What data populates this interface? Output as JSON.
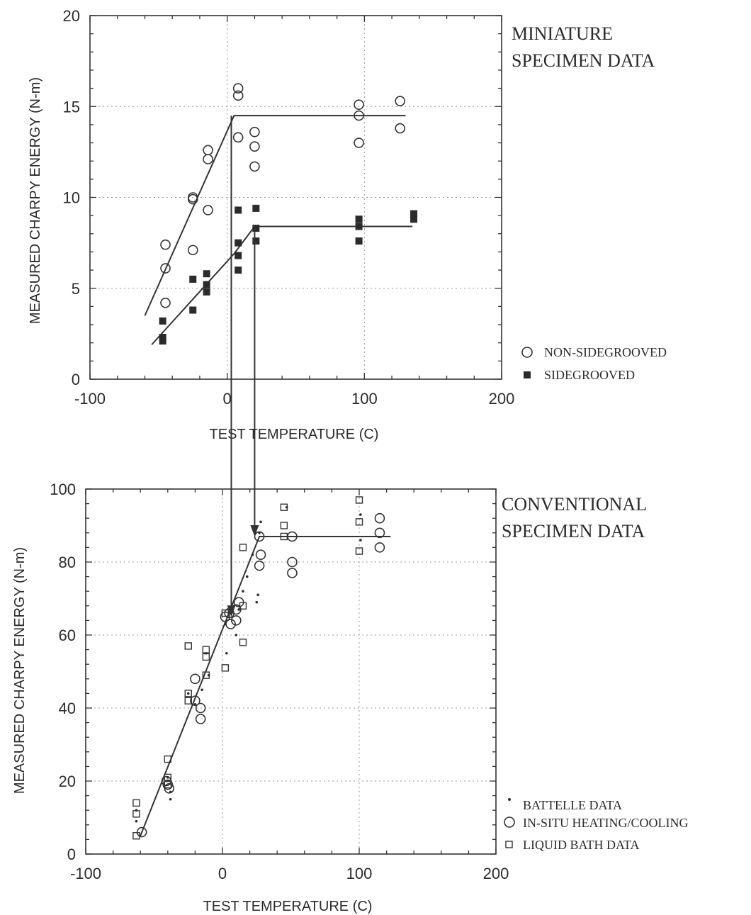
{
  "chart_data": [
    {
      "type": "scatter",
      "title": "MINIATURE SPECIMEN DATA",
      "title_lines": [
        "MINIATURE",
        "SPECIMEN DATA"
      ],
      "xlabel": "TEST TEMPERATURE (C)",
      "ylabel": "MEASURED CHARPY ENERGY (N-m)",
      "xlim": [
        -100,
        200
      ],
      "ylim": [
        0,
        20
      ],
      "xticks": [
        -100,
        0,
        100,
        200
      ],
      "yticks": [
        0,
        5,
        10,
        15,
        20
      ],
      "xtick_labels": [
        "-100",
        "0",
        "100",
        "200"
      ],
      "ytick_labels": [
        "0",
        "5",
        "10",
        "15",
        "20"
      ],
      "grid": true,
      "legend_placement": "right",
      "series": [
        {
          "name": "NON-SIDEGROOVED",
          "marker": "open-circle",
          "points": [
            [
              -45,
              7.4
            ],
            [
              -45,
              6.1
            ],
            [
              -45,
              4.2
            ],
            [
              -25,
              10.0
            ],
            [
              -25,
              9.9
            ],
            [
              -25,
              7.1
            ],
            [
              -14,
              12.6
            ],
            [
              -14,
              12.1
            ],
            [
              -14,
              9.3
            ],
            [
              8,
              16.0
            ],
            [
              8,
              15.6
            ],
            [
              8,
              13.3
            ],
            [
              20,
              13.6
            ],
            [
              20,
              12.8
            ],
            [
              20,
              11.7
            ],
            [
              96,
              15.1
            ],
            [
              96,
              14.5
            ],
            [
              96,
              13.0
            ],
            [
              126,
              15.3
            ],
            [
              126,
              13.8
            ]
          ]
        },
        {
          "name": "SIDEGROOVED",
          "marker": "filled-square",
          "points": [
            [
              -47,
              3.2
            ],
            [
              -47,
              2.3
            ],
            [
              -47,
              2.1
            ],
            [
              -25,
              5.5
            ],
            [
              -25,
              3.8
            ],
            [
              -15,
              5.8
            ],
            [
              -15,
              5.2
            ],
            [
              -15,
              4.8
            ],
            [
              8,
              9.3
            ],
            [
              8,
              7.5
            ],
            [
              8,
              6.8
            ],
            [
              8,
              6.0
            ],
            [
              21,
              9.4
            ],
            [
              21,
              8.3
            ],
            [
              21,
              7.6
            ],
            [
              96,
              8.8
            ],
            [
              96,
              8.4
            ],
            [
              96,
              7.6
            ],
            [
              136,
              9.1
            ],
            [
              136,
              8.8
            ]
          ]
        }
      ],
      "fit_lines": [
        {
          "series": "NON-SIDEGROOVED",
          "points": [
            [
              -60,
              3.5
            ],
            [
              5,
              14.5
            ],
            [
              130,
              14.5
            ]
          ]
        },
        {
          "series": "SIDEGROOVED",
          "points": [
            [
              -55,
              1.9
            ],
            [
              5,
              6.9
            ],
            [
              20,
              8.4
            ],
            [
              135,
              8.4
            ]
          ]
        }
      ]
    },
    {
      "type": "scatter",
      "title": "CONVENTIONAL SPECIMEN DATA",
      "title_lines": [
        "CONVENTIONAL",
        "SPECIMEN DATA"
      ],
      "xlabel": "TEST TEMPERATURE (C)",
      "ylabel": "MEASURED CHARPY ENERGY (N-m)",
      "xlim": [
        -100,
        200
      ],
      "ylim": [
        0,
        100
      ],
      "xticks": [
        -100,
        0,
        100,
        200
      ],
      "yticks": [
        0,
        20,
        40,
        60,
        80,
        100
      ],
      "xtick_labels": [
        "-100",
        "0",
        "100",
        "200"
      ],
      "ytick_labels": [
        "0",
        "20",
        "40",
        "60",
        "80",
        "100"
      ],
      "grid": true,
      "legend_placement": "bottom-right",
      "series": [
        {
          "name": "BATTELLE DATA",
          "marker": "dot",
          "points": [
            [
              -63,
              12
            ],
            [
              -63,
              9
            ],
            [
              -38,
              17
            ],
            [
              -38,
              15
            ],
            [
              -40,
              21
            ],
            [
              -25,
              44
            ],
            [
              -20,
              41
            ],
            [
              -15,
              45
            ],
            [
              -12,
              55
            ],
            [
              -10,
              49
            ],
            [
              2,
              63
            ],
            [
              3,
              55
            ],
            [
              6,
              66
            ],
            [
              10,
              60
            ],
            [
              12,
              67
            ],
            [
              15,
              72
            ],
            [
              18,
              76
            ],
            [
              22,
              82
            ],
            [
              25,
              69
            ],
            [
              26,
              71
            ],
            [
              27,
              88
            ],
            [
              28,
              91
            ],
            [
              47,
              95
            ],
            [
              101,
              93
            ],
            [
              101,
              86
            ]
          ]
        },
        {
          "name": "IN-SITU HEATING/COOLING",
          "marker": "open-circle",
          "points": [
            [
              -59,
              6
            ],
            [
              -41,
              20
            ],
            [
              -40,
              19
            ],
            [
              -39,
              18
            ],
            [
              -20,
              48
            ],
            [
              -20,
              42
            ],
            [
              -16,
              40
            ],
            [
              -16,
              37
            ],
            [
              2,
              65
            ],
            [
              5,
              66
            ],
            [
              6,
              63
            ],
            [
              10,
              64
            ],
            [
              10,
              67
            ],
            [
              12,
              69
            ],
            [
              27,
              87
            ],
            [
              28,
              82
            ],
            [
              27,
              79
            ],
            [
              51,
              87
            ],
            [
              51,
              80
            ],
            [
              51,
              77
            ],
            [
              115,
              92
            ],
            [
              115,
              88
            ],
            [
              115,
              84
            ]
          ]
        },
        {
          "name": "LIQUID BATH DATA",
          "marker": "open-square",
          "points": [
            [
              -63,
              14
            ],
            [
              -63,
              11
            ],
            [
              -63,
              5
            ],
            [
              -40,
              26
            ],
            [
              -40,
              21
            ],
            [
              -40,
              19
            ],
            [
              -25,
              57
            ],
            [
              -25,
              44
            ],
            [
              -25,
              42
            ],
            [
              -12,
              56
            ],
            [
              -12,
              54
            ],
            [
              -12,
              49
            ],
            [
              2,
              66
            ],
            [
              2,
              51
            ],
            [
              15,
              84
            ],
            [
              15,
              68
            ],
            [
              15,
              58
            ],
            [
              45,
              95
            ],
            [
              45,
              90
            ],
            [
              45,
              87
            ],
            [
              100,
              97
            ],
            [
              100,
              91
            ],
            [
              100,
              83
            ]
          ]
        }
      ],
      "fit_lines": [
        {
          "series": "all",
          "points": [
            [
              -60,
              5
            ],
            [
              27,
              87
            ],
            [
              123,
              87
            ]
          ]
        }
      ]
    }
  ],
  "arrows": [
    {
      "from_chart": 0,
      "to_chart": 1,
      "x": 3,
      "from_y": 14.5,
      "to_y": 65
    },
    {
      "from_chart": 0,
      "to_chart": 1,
      "x": 20,
      "from_y": 8.4,
      "to_y": 87
    }
  ]
}
